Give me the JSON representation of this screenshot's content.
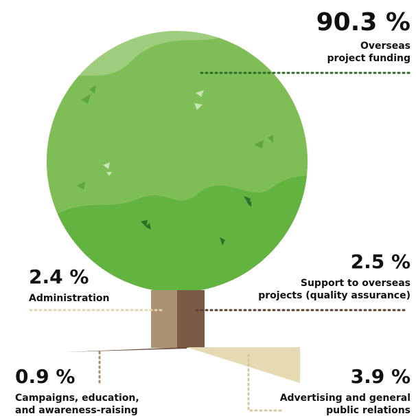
{
  "items": [
    {
      "value": "90.3 %",
      "label": [
        "Overseas",
        "project funding"
      ]
    },
    {
      "value": "2.5 %",
      "label": [
        "Support to overseas",
        "projects (quality assurance)"
      ]
    },
    {
      "value": "2.4 %",
      "label": [
        "Administration"
      ]
    },
    {
      "value": "0.9 %",
      "label": [
        "Campaigns, education,",
        "and awareness-raising"
      ]
    },
    {
      "value": "3.9 %",
      "label": [
        "Advertising and general",
        "public relations"
      ]
    }
  ]
}
